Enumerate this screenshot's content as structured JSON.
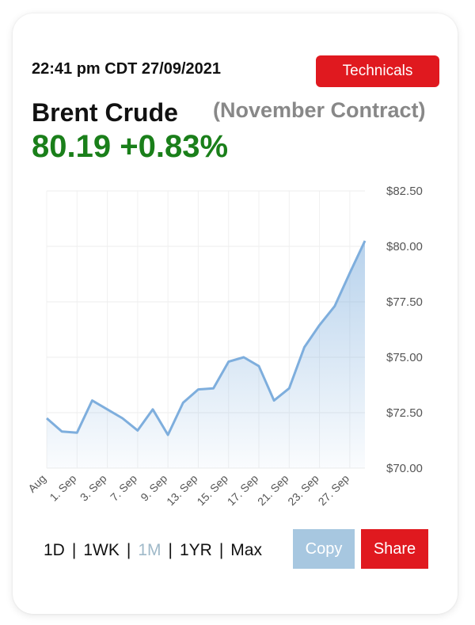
{
  "header": {
    "timestamp": "22:41 pm CDT 27/09/2021",
    "technicals_label": "Technicals",
    "title": "Brent Crude",
    "contract": "(November Contract)",
    "price": "80.19",
    "change": "+0.83%"
  },
  "colors": {
    "accent_red": "#e0191f",
    "positive_green": "#1a7f1a",
    "line_blue": "#7eaedd",
    "copy_blue": "#a7c7e0"
  },
  "chart_data": {
    "type": "area",
    "ytick_labels": [
      "$82.50",
      "$80.00",
      "$77.50",
      "$75.00",
      "$72.50",
      "$70.00"
    ],
    "yticks": [
      82.5,
      80.0,
      77.5,
      75.0,
      72.5,
      70.0
    ],
    "ylim": [
      70.0,
      82.5
    ],
    "xtick_labels": [
      "Aug",
      "1. Sep",
      "3. Sep",
      "7. Sep",
      "9. Sep",
      "13. Sep",
      "15. Sep",
      "17. Sep",
      "21. Sep",
      "23. Sep",
      "27. Sep"
    ],
    "grid": true,
    "series": [
      {
        "values": [
          72.25,
          71.65,
          71.6,
          73.05,
          72.65,
          72.25,
          71.7,
          72.65,
          71.5,
          72.95,
          73.55,
          73.6,
          74.8,
          75.0,
          74.6,
          73.05,
          73.6,
          75.45,
          76.45,
          77.3,
          78.8,
          80.25
        ]
      }
    ]
  },
  "range_options": [
    {
      "label": "1D"
    },
    {
      "label": "1WK"
    },
    {
      "label": "1M"
    },
    {
      "label": "1YR"
    },
    {
      "label": "Max"
    }
  ],
  "buttons": {
    "copy": "Copy",
    "share": "Share"
  }
}
